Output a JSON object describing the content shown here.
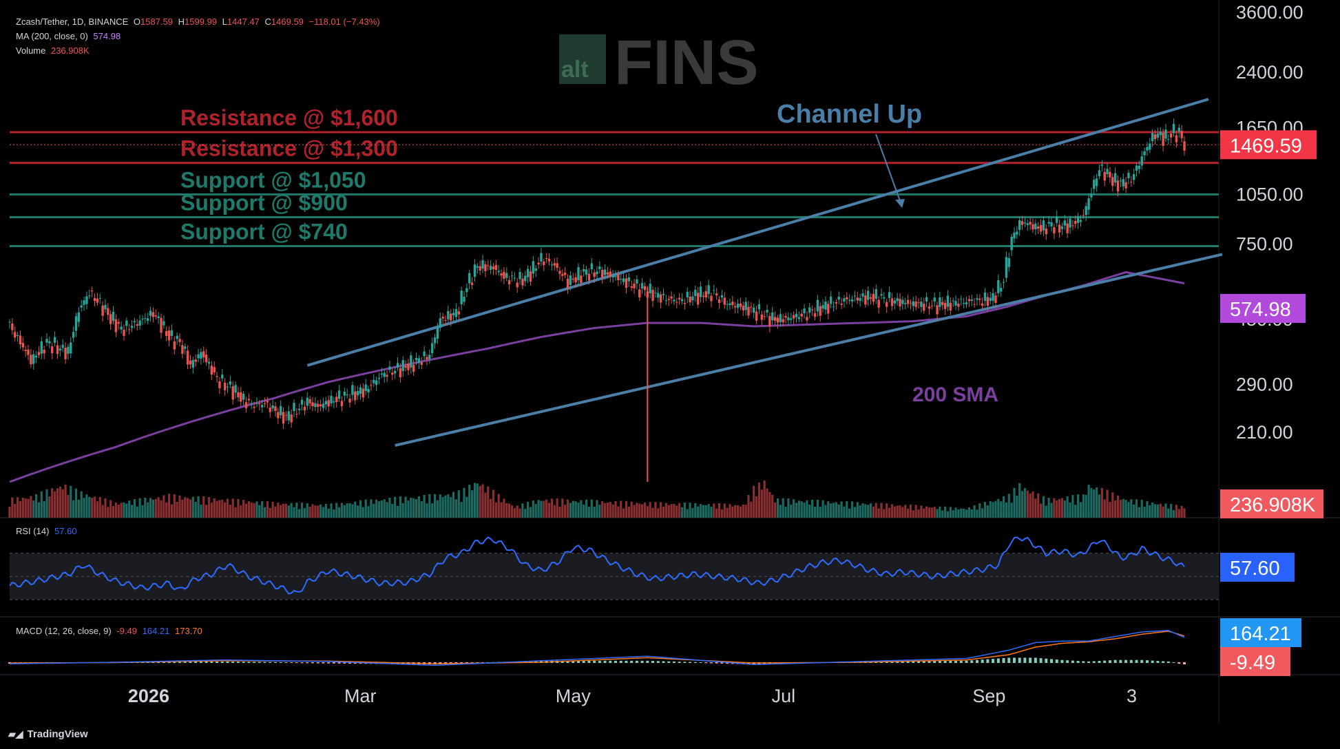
{
  "header": {
    "symbol": "Zcash/Tether, 1D, BINANCE",
    "open_label": "O",
    "open": "1587.59",
    "high_label": "H",
    "high": "1599.99",
    "low_label": "L",
    "low": "1447.47",
    "close_label": "C",
    "close": "1469.59",
    "change": "−118.01 (−7.43%)",
    "ma_label": "MA (200, close, 0)",
    "ma_value": "574.98",
    "volume_label": "Volume",
    "volume_value": "236.908K",
    "rsi_label": "RSI (14)",
    "rsi_value": "57.60",
    "macd_label": "MACD (12, 26, close, 9)",
    "macd_hist": "-9.49",
    "macd_line": "164.21",
    "macd_signal": "173.70"
  },
  "watermark": {
    "prefix": "alt",
    "main": "FINS"
  },
  "brand": {
    "name": "TradingView"
  },
  "colors": {
    "up": "#26a69a",
    "down": "#ef5350",
    "resistance": "#b2222c",
    "support": "#1e7a6a",
    "channel": "#4a7fa8",
    "sma": "#7b3fa0",
    "rsi": "#2f6bff",
    "macd": "#2f6bff",
    "signal": "#ff7a1a",
    "price_badge": "#f23645",
    "sma_badge": "#b24bdb",
    "rsi_badge": "#2962ff"
  },
  "chart_data": {
    "type": "candlestick",
    "scale": "log",
    "y_ticks": [
      "3600.00",
      "2400.00",
      "1650.00",
      "1050.00",
      "750.00",
      "450.00",
      "290.00",
      "210.00"
    ],
    "y_tick_values": [
      3600,
      2400,
      1650,
      1050,
      750,
      450,
      290,
      210
    ],
    "x_ticks": [
      "2026",
      "Mar",
      "May",
      "Jul",
      "Sep",
      "3"
    ],
    "price_badges": {
      "last": "1469.59",
      "sma": "574.98",
      "volume": "236.908K",
      "rsi": "57.60",
      "macd_line": "164.21",
      "macd_hist": "-9.49"
    },
    "levels": [
      {
        "label": "Resistance @ $1,600",
        "value": 1600,
        "kind": "resistance"
      },
      {
        "label": "Resistance @ $1,300",
        "value": 1300,
        "kind": "resistance"
      },
      {
        "label": "Support @ $1,050",
        "value": 1050,
        "kind": "support"
      },
      {
        "label": "Support @ $900",
        "value": 900,
        "kind": "support"
      },
      {
        "label": "Support @ $740",
        "value": 740,
        "kind": "support"
      }
    ],
    "annotations": [
      {
        "label": "Channel Up"
      },
      {
        "label": "200 SMA"
      }
    ],
    "close_path": [
      [
        0,
        430
      ],
      [
        8,
        340
      ],
      [
        14,
        385
      ],
      [
        22,
        360
      ],
      [
        26,
        480
      ],
      [
        30,
        540
      ],
      [
        34,
        500
      ],
      [
        38,
        455
      ],
      [
        42,
        420
      ],
      [
        48,
        440
      ],
      [
        54,
        470
      ],
      [
        60,
        400
      ],
      [
        64,
        385
      ],
      [
        68,
        330
      ],
      [
        72,
        360
      ],
      [
        78,
        300
      ],
      [
        84,
        280
      ],
      [
        88,
        260
      ],
      [
        92,
        252
      ],
      [
        96,
        255
      ],
      [
        100,
        242
      ],
      [
        104,
        232
      ],
      [
        108,
        245
      ],
      [
        112,
        258
      ],
      [
        116,
        250
      ],
      [
        122,
        262
      ],
      [
        128,
        270
      ],
      [
        134,
        280
      ],
      [
        140,
        310
      ],
      [
        146,
        322
      ],
      [
        152,
        335
      ],
      [
        158,
        355
      ],
      [
        162,
        450
      ],
      [
        168,
        470
      ],
      [
        172,
        565
      ],
      [
        176,
        648
      ],
      [
        182,
        640
      ],
      [
        186,
        600
      ],
      [
        192,
        585
      ],
      [
        196,
        620
      ],
      [
        200,
        680
      ],
      [
        204,
        660
      ],
      [
        210,
        580
      ],
      [
        216,
        618
      ],
      [
        222,
        625
      ],
      [
        228,
        600
      ],
      [
        234,
        570
      ],
      [
        240,
        545
      ],
      [
        246,
        520
      ],
      [
        252,
        510
      ],
      [
        258,
        530
      ],
      [
        264,
        540
      ],
      [
        270,
        500
      ],
      [
        276,
        490
      ],
      [
        282,
        470
      ],
      [
        288,
        450
      ],
      [
        294,
        455
      ],
      [
        300,
        470
      ],
      [
        306,
        490
      ],
      [
        312,
        510
      ],
      [
        318,
        520
      ],
      [
        324,
        525
      ],
      [
        330,
        515
      ],
      [
        336,
        505
      ],
      [
        342,
        500
      ],
      [
        348,
        498
      ],
      [
        354,
        502
      ],
      [
        358,
        506
      ],
      [
        362,
        510
      ],
      [
        366,
        512
      ],
      [
        370,
        520
      ],
      [
        374,
        590
      ],
      [
        376,
        720
      ],
      [
        378,
        810
      ],
      [
        380,
        860
      ],
      [
        382,
        870
      ],
      [
        384,
        850
      ],
      [
        388,
        835
      ],
      [
        392,
        855
      ],
      [
        396,
        845
      ],
      [
        400,
        860
      ],
      [
        404,
        910
      ],
      [
        406,
        1020
      ],
      [
        408,
        1130
      ],
      [
        410,
        1250
      ],
      [
        412,
        1220
      ],
      [
        414,
        1180
      ],
      [
        416,
        1140
      ],
      [
        418,
        1130
      ],
      [
        420,
        1150
      ],
      [
        422,
        1170
      ],
      [
        424,
        1250
      ],
      [
        426,
        1350
      ],
      [
        428,
        1450
      ],
      [
        430,
        1550
      ],
      [
        432,
        1580
      ],
      [
        434,
        1540
      ],
      [
        436,
        1560
      ],
      [
        438,
        1600
      ],
      [
        440,
        1590
      ],
      [
        442,
        1469.59
      ]
    ],
    "sma_path": [
      [
        0,
        150
      ],
      [
        20,
        170
      ],
      [
        40,
        190
      ],
      [
        60,
        215
      ],
      [
        80,
        240
      ],
      [
        100,
        265
      ],
      [
        120,
        295
      ],
      [
        140,
        320
      ],
      [
        160,
        345
      ],
      [
        180,
        370
      ],
      [
        200,
        400
      ],
      [
        220,
        425
      ],
      [
        240,
        440
      ],
      [
        260,
        440
      ],
      [
        280,
        430
      ],
      [
        300,
        435
      ],
      [
        320,
        440
      ],
      [
        340,
        445
      ],
      [
        360,
        460
      ],
      [
        375,
        490
      ],
      [
        390,
        530
      ],
      [
        405,
        570
      ],
      [
        420,
        620
      ],
      [
        442,
        574.98
      ]
    ],
    "volume_path": [
      [
        0,
        0.5
      ],
      [
        10,
        0.6
      ],
      [
        20,
        0.9
      ],
      [
        26,
        0.7
      ],
      [
        40,
        0.4
      ],
      [
        60,
        0.6
      ],
      [
        80,
        0.5
      ],
      [
        100,
        0.4
      ],
      [
        120,
        0.35
      ],
      [
        140,
        0.5
      ],
      [
        160,
        0.6
      ],
      [
        170,
        0.7
      ],
      [
        176,
        1.0
      ],
      [
        190,
        0.3
      ],
      [
        200,
        0.5
      ],
      [
        240,
        0.4
      ],
      [
        276,
        0.35
      ],
      [
        280,
        0.8
      ],
      [
        284,
        1.0
      ],
      [
        288,
        0.5
      ],
      [
        320,
        0.4
      ],
      [
        360,
        0.25
      ],
      [
        376,
        0.6
      ],
      [
        380,
        0.9
      ],
      [
        390,
        0.5
      ],
      [
        404,
        0.6
      ],
      [
        406,
        0.9
      ],
      [
        420,
        0.5
      ],
      [
        442,
        0.3
      ]
    ],
    "rsi_path": [
      [
        0,
        42
      ],
      [
        10,
        46
      ],
      [
        22,
        52
      ],
      [
        28,
        60
      ],
      [
        34,
        52
      ],
      [
        40,
        46
      ],
      [
        50,
        40
      ],
      [
        60,
        44
      ],
      [
        64,
        38
      ],
      [
        70,
        48
      ],
      [
        76,
        52
      ],
      [
        82,
        60
      ],
      [
        90,
        50
      ],
      [
        100,
        42
      ],
      [
        108,
        35
      ],
      [
        112,
        45
      ],
      [
        120,
        55
      ],
      [
        130,
        50
      ],
      [
        140,
        44
      ],
      [
        150,
        45
      ],
      [
        158,
        52
      ],
      [
        164,
        66
      ],
      [
        170,
        70
      ],
      [
        176,
        80
      ],
      [
        182,
        82
      ],
      [
        188,
        74
      ],
      [
        194,
        60
      ],
      [
        200,
        55
      ],
      [
        206,
        62
      ],
      [
        212,
        75
      ],
      [
        218,
        73
      ],
      [
        224,
        65
      ],
      [
        230,
        58
      ],
      [
        236,
        52
      ],
      [
        242,
        48
      ],
      [
        250,
        50
      ],
      [
        258,
        52
      ],
      [
        266,
        50
      ],
      [
        274,
        48
      ],
      [
        282,
        44
      ],
      [
        288,
        47
      ],
      [
        294,
        52
      ],
      [
        300,
        58
      ],
      [
        306,
        62
      ],
      [
        312,
        64
      ],
      [
        318,
        60
      ],
      [
        324,
        55
      ],
      [
        330,
        52
      ],
      [
        336,
        54
      ],
      [
        342,
        52
      ],
      [
        348,
        50
      ],
      [
        354,
        52
      ],
      [
        360,
        54
      ],
      [
        366,
        56
      ],
      [
        372,
        60
      ],
      [
        376,
        78
      ],
      [
        380,
        84
      ],
      [
        384,
        80
      ],
      [
        390,
        70
      ],
      [
        396,
        72
      ],
      [
        402,
        68
      ],
      [
        406,
        74
      ],
      [
        410,
        82
      ],
      [
        414,
        75
      ],
      [
        418,
        66
      ],
      [
        422,
        68
      ],
      [
        426,
        74
      ],
      [
        430,
        70
      ],
      [
        434,
        66
      ],
      [
        438,
        63
      ],
      [
        442,
        57.6
      ]
    ],
    "macd_path": [
      [
        0,
        -10
      ],
      [
        40,
        0
      ],
      [
        80,
        15
      ],
      [
        120,
        5
      ],
      [
        160,
        -20
      ],
      [
        200,
        10
      ],
      [
        240,
        40
      ],
      [
        280,
        -15
      ],
      [
        320,
        5
      ],
      [
        360,
        25
      ],
      [
        376,
        80
      ],
      [
        386,
        130
      ],
      [
        396,
        140
      ],
      [
        406,
        140
      ],
      [
        416,
        170
      ],
      [
        426,
        200
      ],
      [
        436,
        210
      ],
      [
        442,
        164.21
      ]
    ],
    "signal_path": [
      [
        0,
        -5
      ],
      [
        40,
        -2
      ],
      [
        80,
        10
      ],
      [
        120,
        8
      ],
      [
        160,
        -10
      ],
      [
        200,
        0
      ],
      [
        240,
        30
      ],
      [
        280,
        -5
      ],
      [
        320,
        0
      ],
      [
        360,
        15
      ],
      [
        376,
        50
      ],
      [
        386,
        100
      ],
      [
        396,
        125
      ],
      [
        406,
        135
      ],
      [
        416,
        155
      ],
      [
        426,
        185
      ],
      [
        436,
        205
      ],
      [
        442,
        173.7
      ]
    ]
  }
}
